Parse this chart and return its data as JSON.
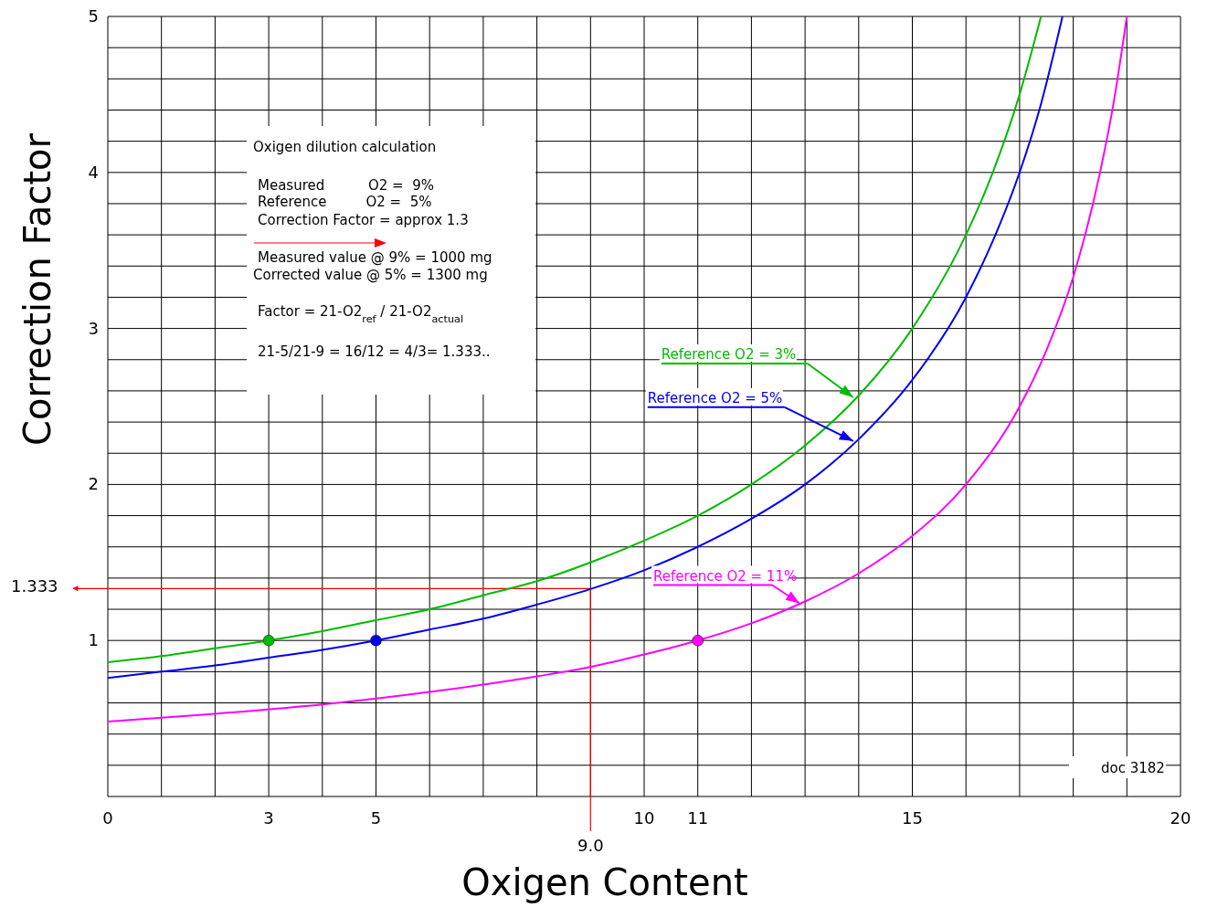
{
  "chart_data": {
    "type": "line",
    "xlabel": "Oxigen Content",
    "ylabel": "Correction Factor",
    "xlim": [
      0,
      20
    ],
    "ylim": [
      0,
      5
    ],
    "xticks": [
      0,
      {
        "value": 1,
        "label": null
      },
      {
        "value": 2,
        "label": null
      },
      3,
      {
        "value": 4,
        "label": null
      },
      5,
      {
        "value": 6,
        "label": null
      },
      {
        "value": 7,
        "label": null
      },
      {
        "value": 8,
        "label": null
      },
      {
        "value": 9,
        "label": null
      },
      10,
      11,
      {
        "value": 12,
        "label": null
      },
      {
        "value": 13,
        "label": null
      },
      {
        "value": 14,
        "label": null
      },
      15,
      {
        "value": 16,
        "label": null
      },
      {
        "value": 17,
        "label": null
      },
      {
        "value": 18,
        "label": null
      },
      {
        "value": 19,
        "label": null
      },
      20
    ],
    "yticks": [
      {
        "value": 0,
        "label": null
      },
      {
        "value": 0.2,
        "label": null
      },
      {
        "value": 0.4,
        "label": null
      },
      {
        "value": 0.6,
        "label": null
      },
      {
        "value": 0.8,
        "label": null
      },
      1,
      {
        "value": 1.2,
        "label": null
      },
      {
        "value": 1.4,
        "label": null
      },
      {
        "value": 1.6,
        "label": null
      },
      {
        "value": 1.8,
        "label": null
      },
      2,
      {
        "value": 2.2,
        "label": null
      },
      {
        "value": 2.4,
        "label": null
      },
      {
        "value": 2.6,
        "label": null
      },
      {
        "value": 2.8,
        "label": null
      },
      3,
      {
        "value": 3.2,
        "label": null
      },
      {
        "value": 3.4,
        "label": null
      },
      {
        "value": 3.6,
        "label": null
      },
      {
        "value": 3.8,
        "label": null
      },
      4,
      {
        "value": 4.2,
        "label": null
      },
      {
        "value": 4.4,
        "label": null
      },
      {
        "value": 4.6,
        "label": null
      },
      {
        "value": 4.8,
        "label": null
      },
      5
    ],
    "grid": true,
    "marker": "none",
    "line_style": "solid",
    "series": [
      {
        "name": "Reference O2 = 3%",
        "color": "#00bb00",
        "x": [
          0,
          1,
          2,
          3,
          4,
          5,
          6,
          7,
          8,
          9,
          10,
          11,
          12,
          13,
          14,
          15,
          16,
          16.5,
          17,
          17.4
        ],
        "values": [
          0.86,
          0.9,
          0.95,
          1.0,
          1.06,
          1.13,
          1.2,
          1.29,
          1.38,
          1.5,
          1.64,
          1.8,
          2.0,
          2.25,
          2.57,
          3.0,
          3.6,
          4.0,
          4.5,
          5.0
        ]
      },
      {
        "name": "Reference O2 = 5%",
        "color": "#0000ee",
        "x": [
          0,
          1,
          2,
          3,
          4,
          5,
          6,
          7,
          8,
          9,
          10,
          11,
          12,
          13,
          14,
          15,
          16,
          16.5,
          17,
          17.4,
          17.8
        ],
        "values": [
          0.76,
          0.8,
          0.84,
          0.89,
          0.94,
          1.0,
          1.07,
          1.14,
          1.23,
          1.33,
          1.45,
          1.6,
          1.78,
          2.0,
          2.29,
          2.67,
          3.2,
          3.56,
          4.0,
          4.44,
          5.0
        ]
      },
      {
        "name": "Reference O2 = 11%",
        "color": "#ff00ff",
        "x": [
          0,
          2,
          4,
          6,
          8,
          9,
          10,
          11,
          12,
          13,
          14,
          15,
          16,
          17,
          17.5,
          18,
          18.5,
          18.75,
          19
        ],
        "values": [
          0.48,
          0.53,
          0.59,
          0.67,
          0.77,
          0.83,
          0.91,
          1.0,
          1.11,
          1.25,
          1.43,
          1.67,
          2.0,
          2.5,
          2.86,
          3.33,
          4.0,
          4.44,
          5.0
        ]
      },
      {
        "type": "scatter",
        "marker": "circle",
        "color": "#00bb00",
        "x": [
          3
        ],
        "values": [
          1
        ]
      },
      {
        "type": "scatter",
        "marker": "circle",
        "color": "#0000ee",
        "x": [
          5
        ],
        "values": [
          1
        ]
      },
      {
        "type": "scatter",
        "marker": "circle",
        "color": "#ff00ff",
        "x": [
          11
        ],
        "values": [
          1
        ]
      }
    ],
    "ref_lines": [
      {
        "axis": "x",
        "value": 9,
        "label": "9.0",
        "color": "#ff0000"
      },
      {
        "axis": "y",
        "value": 1.333,
        "label": "1.333",
        "color": "#ff0000"
      }
    ],
    "annotations": [
      "Oxigen dilution calculation",
      "Measured          O2 =  9%",
      "Reference         O2 =  5%",
      "Correction Factor = approx 1.3",
      "Measured value @ 9% = 1000 mg",
      "Corrected value @ 5% = 1300 mg",
      "Factor = 21-O2$_{ref}$ / 21-O2$_{actual}$",
      "21-5/21-9 = 16/12 = 4/3= 1.333..",
      "doc 3182"
    ]
  }
}
